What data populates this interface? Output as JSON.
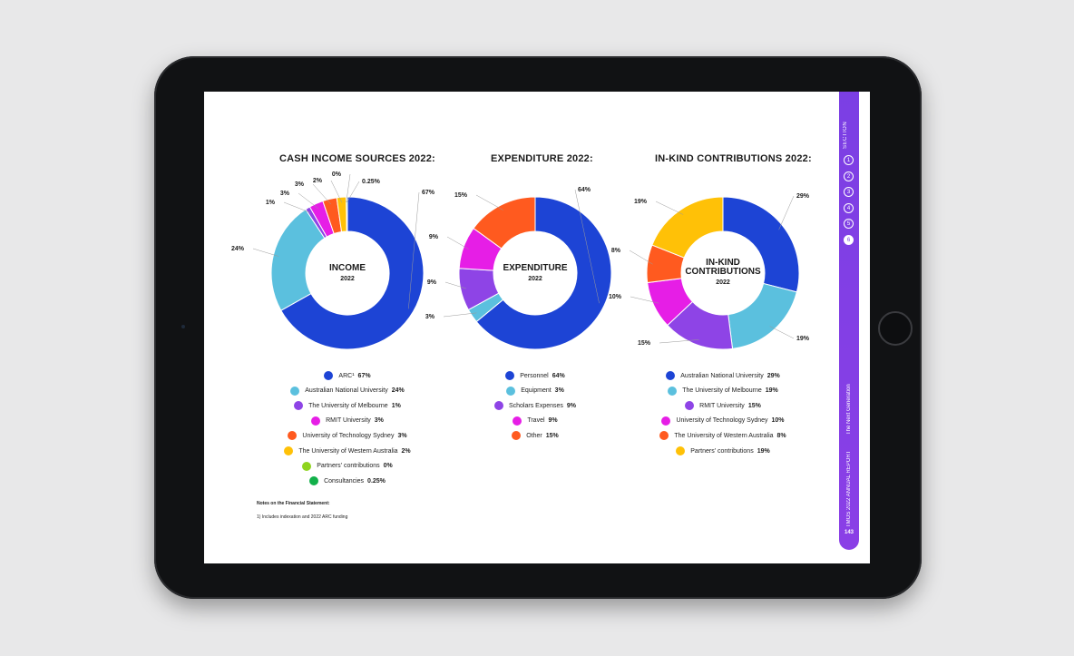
{
  "sidebar": {
    "section_label": "SECTION",
    "sections": [
      "1",
      "2",
      "3",
      "4",
      "5",
      "6"
    ],
    "active_section": 5,
    "report_title": "TMOS 2022 ANNUAL REPORT",
    "subtitle": "The Next Generation",
    "page_number": "143"
  },
  "notes": {
    "title": "Notes on the Financial Statement:",
    "text": "1) Includes indexation and 2022 ARC funding"
  },
  "chart_data": [
    {
      "type": "pie",
      "title": "CASH INCOME SOURCES 2022:",
      "center_main": "INCOME",
      "center_sub": "2022",
      "categories": [
        "ARC¹",
        "Australian National University",
        "The University of Melbourne",
        "RMIT University",
        "University of Technology Sydney",
        "The University of Western Australia",
        "Partners' contributions",
        "Consultancies"
      ],
      "values": [
        67,
        24,
        1,
        3,
        3,
        2,
        0,
        0.25
      ],
      "value_labels": [
        "67%",
        "24%",
        "1%",
        "3%",
        "3%",
        "2%",
        "0%",
        "0.25%"
      ],
      "colors": [
        "#1d44d5",
        "#5bc0de",
        "#8e44e6",
        "#e61ee6",
        "#ff5a1f",
        "#ffc107",
        "#8fd41e",
        "#12b04a"
      ]
    },
    {
      "type": "pie",
      "title": "EXPENDITURE 2022:",
      "center_main": "EXPENDITURE",
      "center_sub": "2022",
      "categories": [
        "Personnel",
        "Equipment",
        "Scholars Expenses",
        "Travel",
        "Other"
      ],
      "values": [
        64,
        3,
        9,
        9,
        15
      ],
      "value_labels": [
        "64%",
        "3%",
        "9%",
        "9%",
        "15%"
      ],
      "colors": [
        "#1d44d5",
        "#5bc0de",
        "#8e44e6",
        "#e61ee6",
        "#ff5a1f"
      ]
    },
    {
      "type": "pie",
      "title": "IN-KIND CONTRIBUTIONS 2022:",
      "center_main": "IN-KIND CONTRIBUTIONS",
      "center_sub": "2022",
      "categories": [
        "Australian National University",
        "The University of Melbourne",
        "RMIT University",
        "University of Technology Sydney",
        "The University of Western Australia",
        "Partners' contributions"
      ],
      "values": [
        29,
        19,
        15,
        10,
        8,
        19
      ],
      "value_labels": [
        "29%",
        "19%",
        "15%",
        "10%",
        "8%",
        "19%"
      ],
      "colors": [
        "#1d44d5",
        "#5bc0de",
        "#8e44e6",
        "#e61ee6",
        "#ff5a1f",
        "#ffc107"
      ]
    }
  ]
}
